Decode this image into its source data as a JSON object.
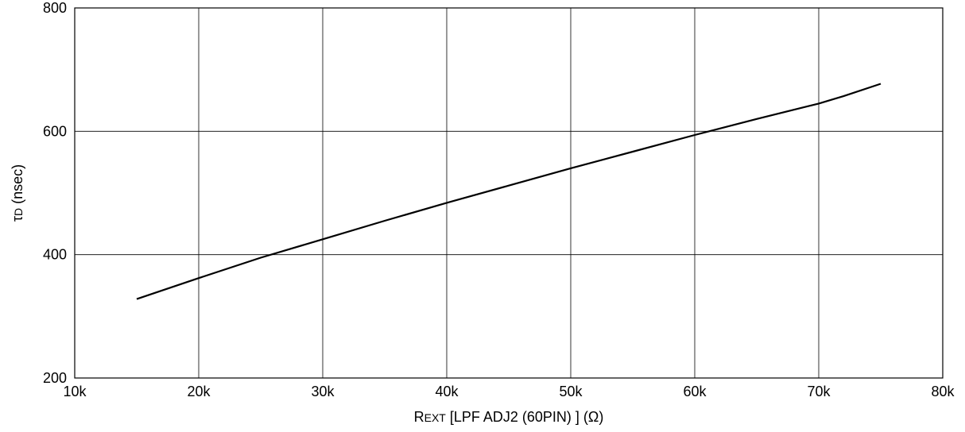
{
  "chart_data": {
    "type": "line",
    "title": "",
    "xlabel": "REXT [LPF ADJ2 (60PIN) ]  (Ω)",
    "xlabel_parts": {
      "main": "R",
      "sub": "EXT",
      "rest": " [LPF ADJ2 (60PIN) ]  (Ω)"
    },
    "ylabel": "τD (nsec)",
    "ylabel_parts": {
      "tau": "τ",
      "sub": "D",
      "rest": " (nsec)"
    },
    "xlim": [
      10000,
      80000
    ],
    "ylim": [
      200,
      800
    ],
    "x_ticks": [
      10000,
      20000,
      30000,
      40000,
      50000,
      60000,
      70000,
      80000
    ],
    "x_tick_labels": [
      "10k",
      "20k",
      "30k",
      "40k",
      "50k",
      "60k",
      "70k",
      "80k"
    ],
    "y_ticks": [
      200,
      400,
      600,
      800
    ],
    "y_tick_labels": [
      "200",
      "400",
      "600",
      "800"
    ],
    "grid": true,
    "series": [
      {
        "x": [
          15000,
          20000,
          25000,
          30000,
          35000,
          40000,
          45000,
          50000,
          55000,
          60000,
          65000,
          70000,
          72000,
          75000
        ],
        "values": [
          328,
          362,
          395,
          425,
          455,
          484,
          512,
          540,
          567,
          594,
          620,
          645,
          657,
          677
        ],
        "color": "#000000"
      }
    ]
  }
}
